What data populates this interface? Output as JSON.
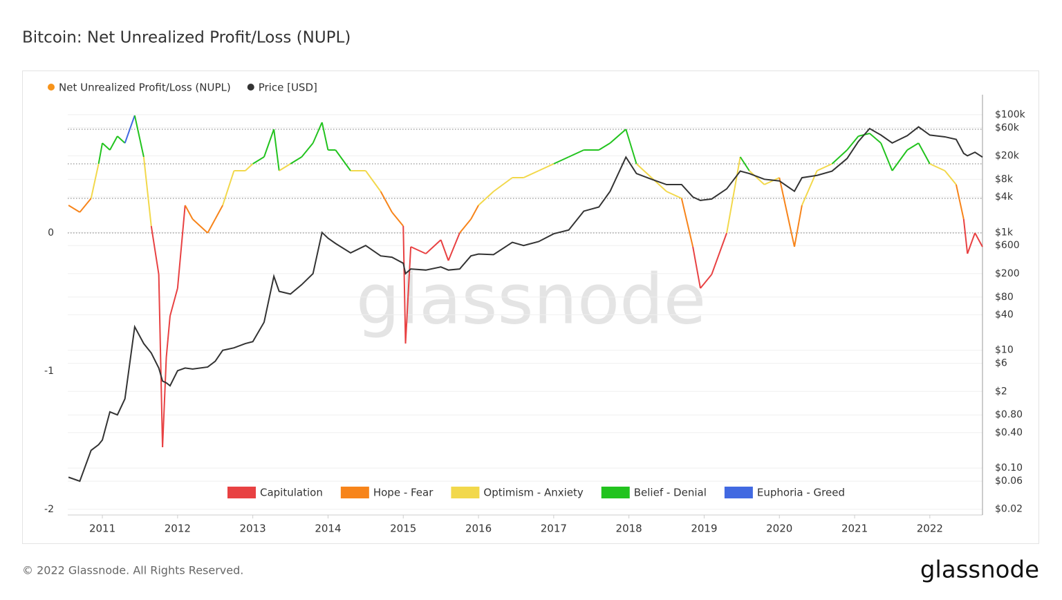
{
  "chart_data": {
    "type": "line",
    "title": "Bitcoin: Net Unrealized Profit/Loss (NUPL)",
    "watermark": "glassnode",
    "footer": "© 2022 Glassnode. All Rights Reserved.",
    "logo": "glassnode",
    "x": [
      2010.55,
      2010.7,
      2010.85,
      2010.95,
      2011.0,
      2011.1,
      2011.2,
      2011.3,
      2011.43,
      2011.55,
      2011.65,
      2011.75,
      2011.8,
      2011.85,
      2011.9,
      2012.0,
      2012.1,
      2012.2,
      2012.4,
      2012.5,
      2012.6,
      2012.75,
      2012.9,
      2013.0,
      2013.15,
      2013.28,
      2013.35,
      2013.5,
      2013.65,
      2013.8,
      2013.92,
      2014.0,
      2014.1,
      2014.3,
      2014.5,
      2014.7,
      2014.85,
      2015.0,
      2015.03,
      2015.1,
      2015.3,
      2015.5,
      2015.6,
      2015.75,
      2015.9,
      2016.0,
      2016.2,
      2016.45,
      2016.6,
      2016.8,
      2017.0,
      2017.2,
      2017.4,
      2017.6,
      2017.75,
      2017.96,
      2018.1,
      2018.3,
      2018.5,
      2018.7,
      2018.85,
      2018.95,
      2019.1,
      2019.3,
      2019.48,
      2019.6,
      2019.8,
      2020.0,
      2020.2,
      2020.3,
      2020.5,
      2020.7,
      2020.9,
      2021.05,
      2021.2,
      2021.35,
      2021.5,
      2021.7,
      2021.85,
      2022.0,
      2022.2,
      2022.35,
      2022.45,
      2022.5,
      2022.6,
      2022.7
    ],
    "series": [
      {
        "name": "Net Unrealized Profit/Loss (NUPL)",
        "color": "#f7931a",
        "values": [
          0.2,
          0.15,
          0.25,
          0.5,
          0.65,
          0.6,
          0.7,
          0.65,
          0.85,
          0.55,
          0.05,
          -0.3,
          -1.55,
          -0.9,
          -0.6,
          -0.4,
          0.2,
          0.1,
          0.0,
          0.1,
          0.2,
          0.45,
          0.45,
          0.5,
          0.55,
          0.75,
          0.45,
          0.5,
          0.55,
          0.65,
          0.8,
          0.6,
          0.6,
          0.45,
          0.45,
          0.3,
          0.15,
          0.05,
          -0.8,
          -0.1,
          -0.15,
          -0.05,
          -0.2,
          0.0,
          0.1,
          0.2,
          0.3,
          0.4,
          0.4,
          0.45,
          0.5,
          0.55,
          0.6,
          0.6,
          0.65,
          0.75,
          0.5,
          0.4,
          0.3,
          0.25,
          -0.1,
          -0.4,
          -0.3,
          0.0,
          0.55,
          0.45,
          0.35,
          0.4,
          -0.1,
          0.2,
          0.45,
          0.5,
          0.6,
          0.7,
          0.72,
          0.65,
          0.45,
          0.6,
          0.65,
          0.5,
          0.45,
          0.35,
          0.1,
          -0.15,
          0.0,
          -0.1
        ]
      },
      {
        "name": "Price [USD]",
        "color": "#333333",
        "axis": "y2",
        "values": [
          0.07,
          0.06,
          0.2,
          0.25,
          0.3,
          0.9,
          0.8,
          1.5,
          25,
          13,
          9,
          5,
          3,
          2.8,
          2.5,
          4.5,
          5,
          4.8,
          5.2,
          6.5,
          10,
          11,
          13,
          14,
          30,
          180,
          100,
          90,
          130,
          200,
          1000,
          800,
          650,
          450,
          600,
          400,
          380,
          300,
          200,
          240,
          230,
          260,
          230,
          240,
          400,
          430,
          420,
          680,
          600,
          700,
          950,
          1100,
          2300,
          2700,
          5000,
          19000,
          10000,
          8000,
          6500,
          6500,
          4000,
          3500,
          3700,
          5500,
          11000,
          10000,
          8000,
          7500,
          5000,
          8500,
          9300,
          11000,
          18000,
          35000,
          58000,
          45000,
          33000,
          44000,
          62000,
          45000,
          42000,
          38000,
          22000,
          20000,
          23000,
          19000
        ]
      }
    ],
    "zones": [
      {
        "name": "Capitulation",
        "color": "#e84142",
        "to": 0
      },
      {
        "name": "Hope - Fear",
        "color": "#f7841a",
        "from": 0,
        "to": 0.25
      },
      {
        "name": "Optimism - Anxiety",
        "color": "#f2d84b",
        "from": 0.25,
        "to": 0.5
      },
      {
        "name": "Belief - Denial",
        "color": "#22c31e",
        "from": 0.5,
        "to": 0.75
      },
      {
        "name": "Euphoria - Greed",
        "color": "#4169e1",
        "from": 0.75
      }
    ],
    "xlim": [
      2010.54,
      2022.7
    ],
    "xticks": [
      2011,
      2012,
      2013,
      2014,
      2015,
      2016,
      2017,
      2018,
      2019,
      2020,
      2021,
      2022
    ],
    "ylim": [
      -2.04,
      1
    ],
    "yticks": [
      -2,
      -1,
      0
    ],
    "y2lim": [
      0.016,
      218000
    ],
    "y2log": true,
    "y2ticks": [
      {
        "value": 100000,
        "label": "$100k"
      },
      {
        "value": 60000,
        "label": "$60k"
      },
      {
        "value": 20000,
        "label": "$20k"
      },
      {
        "value": 8000,
        "label": "$8k"
      },
      {
        "value": 4000,
        "label": "$4k"
      },
      {
        "value": 1000,
        "label": "$1k"
      },
      {
        "value": 600,
        "label": "$600"
      },
      {
        "value": 200,
        "label": "$200"
      },
      {
        "value": 80,
        "label": "$80"
      },
      {
        "value": 40,
        "label": "$40"
      },
      {
        "value": 10,
        "label": "$10"
      },
      {
        "value": 6,
        "label": "$6"
      },
      {
        "value": 2,
        "label": "$2"
      },
      {
        "value": 0.8,
        "label": "$0.80"
      },
      {
        "value": 0.4,
        "label": "$0.40"
      },
      {
        "value": 0.1,
        "label": "$0.10"
      },
      {
        "value": 0.06,
        "label": "$0.06"
      },
      {
        "value": 0.02,
        "label": "$0.02"
      }
    ],
    "grid": true
  }
}
